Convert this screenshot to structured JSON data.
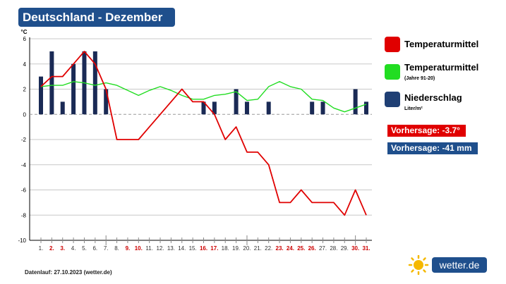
{
  "header": {
    "title": "Deutschland - Dezember"
  },
  "legend": {
    "items": [
      {
        "label": "Temperaturmittel",
        "sub": "",
        "color": "#e00000"
      },
      {
        "label": "Temperaturmittel",
        "sub": "(Jahre 91-20)",
        "color": "#22dd22"
      },
      {
        "label": "Niederschlag",
        "sub": "Liter/m²",
        "color": "#1f3f74"
      }
    ]
  },
  "forecast": {
    "temperature": "Vorhersage: -3.7°",
    "precipitation": "Vorhersage: -41 mm",
    "temperature_color": "#e00000",
    "precipitation_color": "#1f4f8c"
  },
  "footer": {
    "text": "Datenlauf: 27.10.2023 (wetter.de)"
  },
  "brand": {
    "name": "wetter.de",
    "icon": "sun-icon",
    "color": "#1f4f8c",
    "sun_color": "#f5b800"
  },
  "chart_data": {
    "type": "bar+line",
    "ylabel": "°C",
    "ylim": [
      -10,
      6
    ],
    "yticks": [
      6,
      4,
      2,
      0,
      -2,
      -4,
      -6,
      -8,
      -10
    ],
    "ytick_labels": [
      "6",
      "4",
      "2",
      "0",
      "-2",
      "-4",
      "-6",
      "-8",
      "-10"
    ],
    "grid": true,
    "categories": [
      "1.",
      "2.",
      "3.",
      "4.",
      "5.",
      "6.",
      "7.",
      "8.",
      "9.",
      "10.",
      "11.",
      "12.",
      "13.",
      "14.",
      "15.",
      "16.",
      "17.",
      "18.",
      "19.",
      "20.",
      "21.",
      "22.",
      "23.",
      "24.",
      "25.",
      "26.",
      "27.",
      "28.",
      "29.",
      "30.",
      "31."
    ],
    "highlighted_categories": [
      "2.",
      "3.",
      "9.",
      "10.",
      "16.",
      "17.",
      "23.",
      "24.",
      "25.",
      "26.",
      "30.",
      "31."
    ],
    "highlight_color": "#cc0000",
    "series": [
      {
        "name": "Niederschlag",
        "type": "bar",
        "color": "#1a2a55",
        "values": [
          3,
          5,
          1,
          4,
          5,
          5,
          2,
          0,
          0,
          0,
          0,
          0,
          0,
          0,
          0,
          1,
          1,
          0,
          2,
          1,
          0,
          1,
          0,
          0,
          0,
          1,
          1,
          0,
          0,
          2,
          1
        ]
      },
      {
        "name": "Temperaturmittel",
        "type": "line",
        "color": "#e00000",
        "values": [
          2.2,
          3,
          3,
          4,
          5,
          4,
          2,
          -2,
          -2,
          -2,
          -1,
          0,
          1,
          2,
          1,
          1,
          0,
          -2,
          -1,
          -3,
          -3,
          -4,
          -7,
          -7,
          -6,
          -7,
          -7,
          -7,
          -8,
          -6,
          -8
        ]
      },
      {
        "name": "Temperaturmittel (Jahre 91-20)",
        "type": "line",
        "color": "#22dd22",
        "values": [
          2.2,
          2.3,
          2.3,
          2.6,
          2.5,
          2.3,
          2.5,
          2.3,
          1.9,
          1.5,
          1.9,
          2.2,
          1.9,
          1.5,
          1.2,
          1.2,
          1.5,
          1.6,
          1.8,
          1.1,
          1.2,
          2.2,
          2.6,
          2.2,
          2.0,
          1.2,
          1.1,
          0.5,
          0.2,
          0.5,
          0.8
        ]
      }
    ]
  }
}
